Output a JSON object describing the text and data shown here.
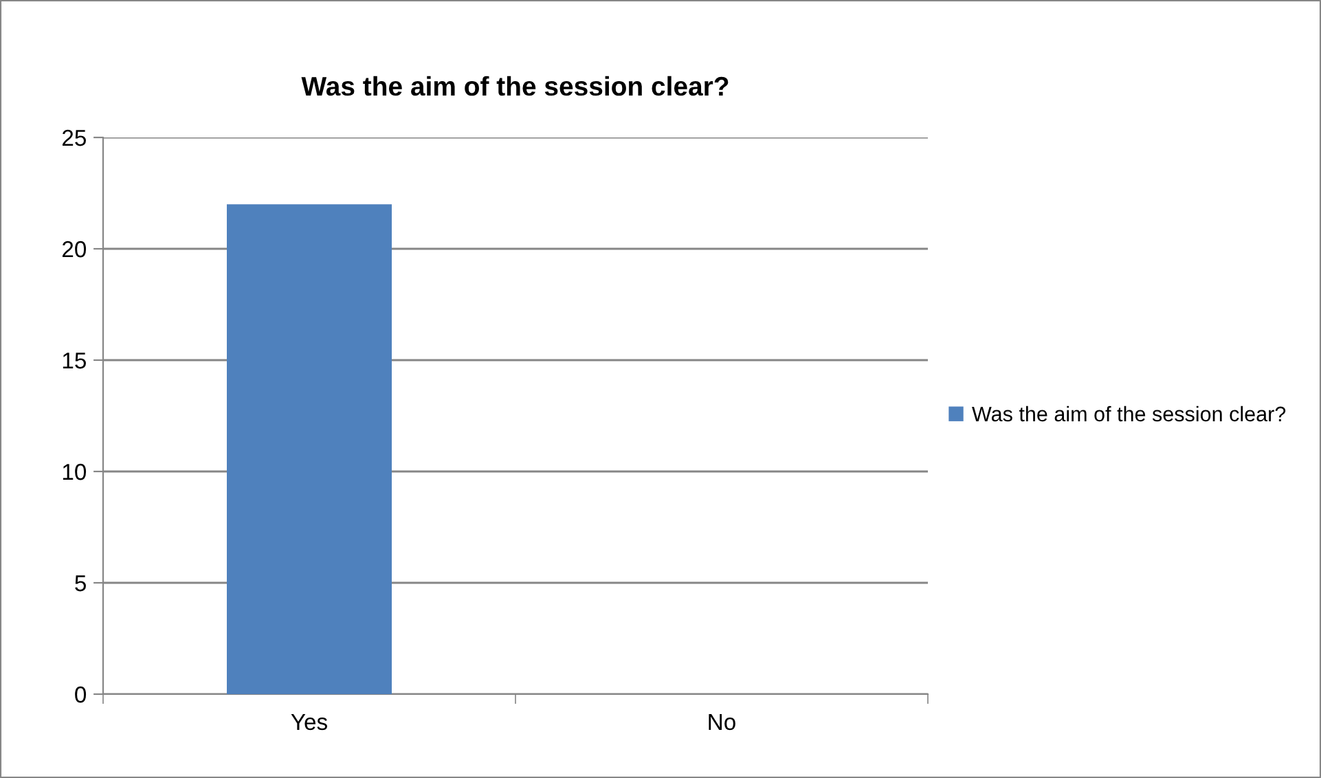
{
  "chart_data": {
    "type": "bar",
    "title": "Was the aim of the session clear?",
    "categories": [
      "Yes",
      "No"
    ],
    "series": [
      {
        "name": "Was the aim of the session clear?",
        "color": "#4f81bd",
        "values": [
          22,
          0
        ]
      }
    ],
    "ylim": [
      0,
      25
    ],
    "yticks": [
      0,
      5,
      10,
      15,
      20,
      25
    ],
    "grid": "y",
    "legend": "right"
  }
}
